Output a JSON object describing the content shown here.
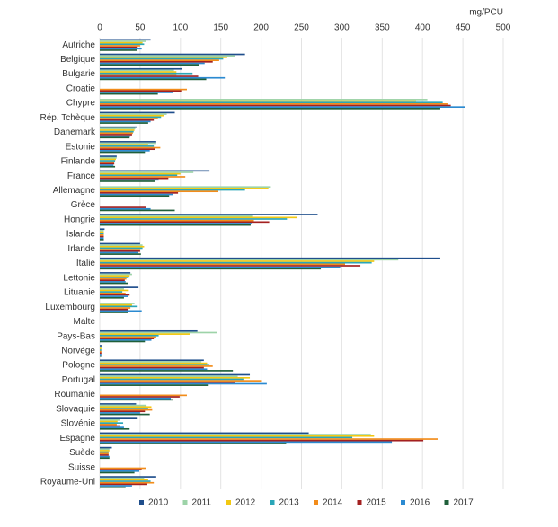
{
  "chart_data": {
    "type": "bar",
    "orientation": "horizontal",
    "unit_label": "mg/PCU",
    "categories": [
      "Autriche",
      "Belgique",
      "Bulgarie",
      "Croatie",
      "Chypre",
      "Rép. Tchèque",
      "Danemark",
      "Estonie",
      "Finlande",
      "France",
      "Allemagne",
      "Grèce",
      "Hongrie",
      "Islande",
      "Irlande",
      "Italie",
      "Lettonie",
      "Lituanie",
      "Luxembourg",
      "Malte",
      "Pays-Bas",
      "Norvège",
      "Pologne",
      "Portugal",
      "Roumanie",
      "Slovaquie",
      "Slovénie",
      "Espagne",
      "Suède",
      "Suisse",
      "Royaume-Uni"
    ],
    "xlim": [
      0,
      500
    ],
    "xticks": [
      0,
      50,
      100,
      150,
      200,
      250,
      300,
      350,
      400,
      450,
      500
    ],
    "grid": true,
    "legend": "bottom",
    "series": [
      {
        "name": "2010",
        "color": "#1f4e8c",
        "values": [
          63,
          180,
          102,
          null,
          null,
          93,
          46,
          70,
          21,
          136,
          null,
          null,
          270,
          6,
          50,
          422,
          38,
          48,
          null,
          null,
          121,
          3,
          129,
          186,
          null,
          45,
          47,
          259,
          15,
          null,
          70
        ]
      },
      {
        "name": "2011",
        "color": "#9dd3a8",
        "values": [
          57,
          167,
          92,
          null,
          406,
          83,
          44,
          70,
          21,
          116,
          212,
          null,
          190,
          5,
          53,
          370,
          40,
          30,
          43,
          null,
          145,
          3,
          126,
          171,
          null,
          58,
          25,
          336,
          12,
          null,
          55
        ]
      },
      {
        "name": "2012",
        "color": "#f2c811",
        "values": [
          53,
          158,
          95,
          null,
          392,
          80,
          43,
          60,
          20,
          100,
          209,
          null,
          245,
          5,
          55,
          340,
          37,
          36,
          40,
          null,
          112,
          2,
          133,
          186,
          null,
          64,
          22,
          340,
          12,
          null,
          60
        ]
      },
      {
        "name": "2013",
        "color": "#2aa6b8",
        "values": [
          55,
          153,
          115,
          null,
          425,
          76,
          42,
          67,
          19,
          96,
          180,
          null,
          232,
          5,
          53,
          337,
          36,
          28,
          47,
          null,
          73,
          2,
          136,
          178,
          null,
          60,
          29,
          313,
          11,
          null,
          63
        ]
      },
      {
        "name": "2014",
        "color": "#f28c1a",
        "values": [
          50,
          148,
          95,
          108,
          432,
          72,
          41,
          75,
          18,
          106,
          147,
          null,
          191,
          5,
          50,
          304,
          33,
          32,
          38,
          null,
          70,
          2,
          140,
          201,
          108,
          65,
          21,
          419,
          11,
          57,
          67
        ]
      },
      {
        "name": "2015",
        "color": "#a32020",
        "values": [
          47,
          140,
          122,
          101,
          435,
          67,
          40,
          68,
          18,
          85,
          97,
          57,
          210,
          5,
          50,
          323,
          31,
          37,
          35,
          null,
          67,
          2,
          129,
          168,
          99,
          56,
          25,
          401,
          11,
          52,
          59
        ]
      },
      {
        "name": "2016",
        "color": "#2b8ad1",
        "values": [
          52,
          130,
          155,
          91,
          453,
          63,
          38,
          62,
          17,
          73,
          91,
          63,
          188,
          5,
          48,
          298,
          32,
          35,
          52,
          null,
          64,
          2,
          133,
          207,
          88,
          50,
          30,
          362,
          12,
          49,
          40
        ]
      },
      {
        "name": "2017",
        "color": "#1f5f3a",
        "values": [
          46,
          123,
          132,
          72,
          422,
          60,
          37,
          56,
          19,
          68,
          86,
          93,
          187,
          5,
          51,
          274,
          35,
          30,
          35,
          null,
          56,
          2,
          165,
          135,
          91,
          62,
          37,
          231,
          12,
          43,
          32
        ]
      }
    ]
  }
}
